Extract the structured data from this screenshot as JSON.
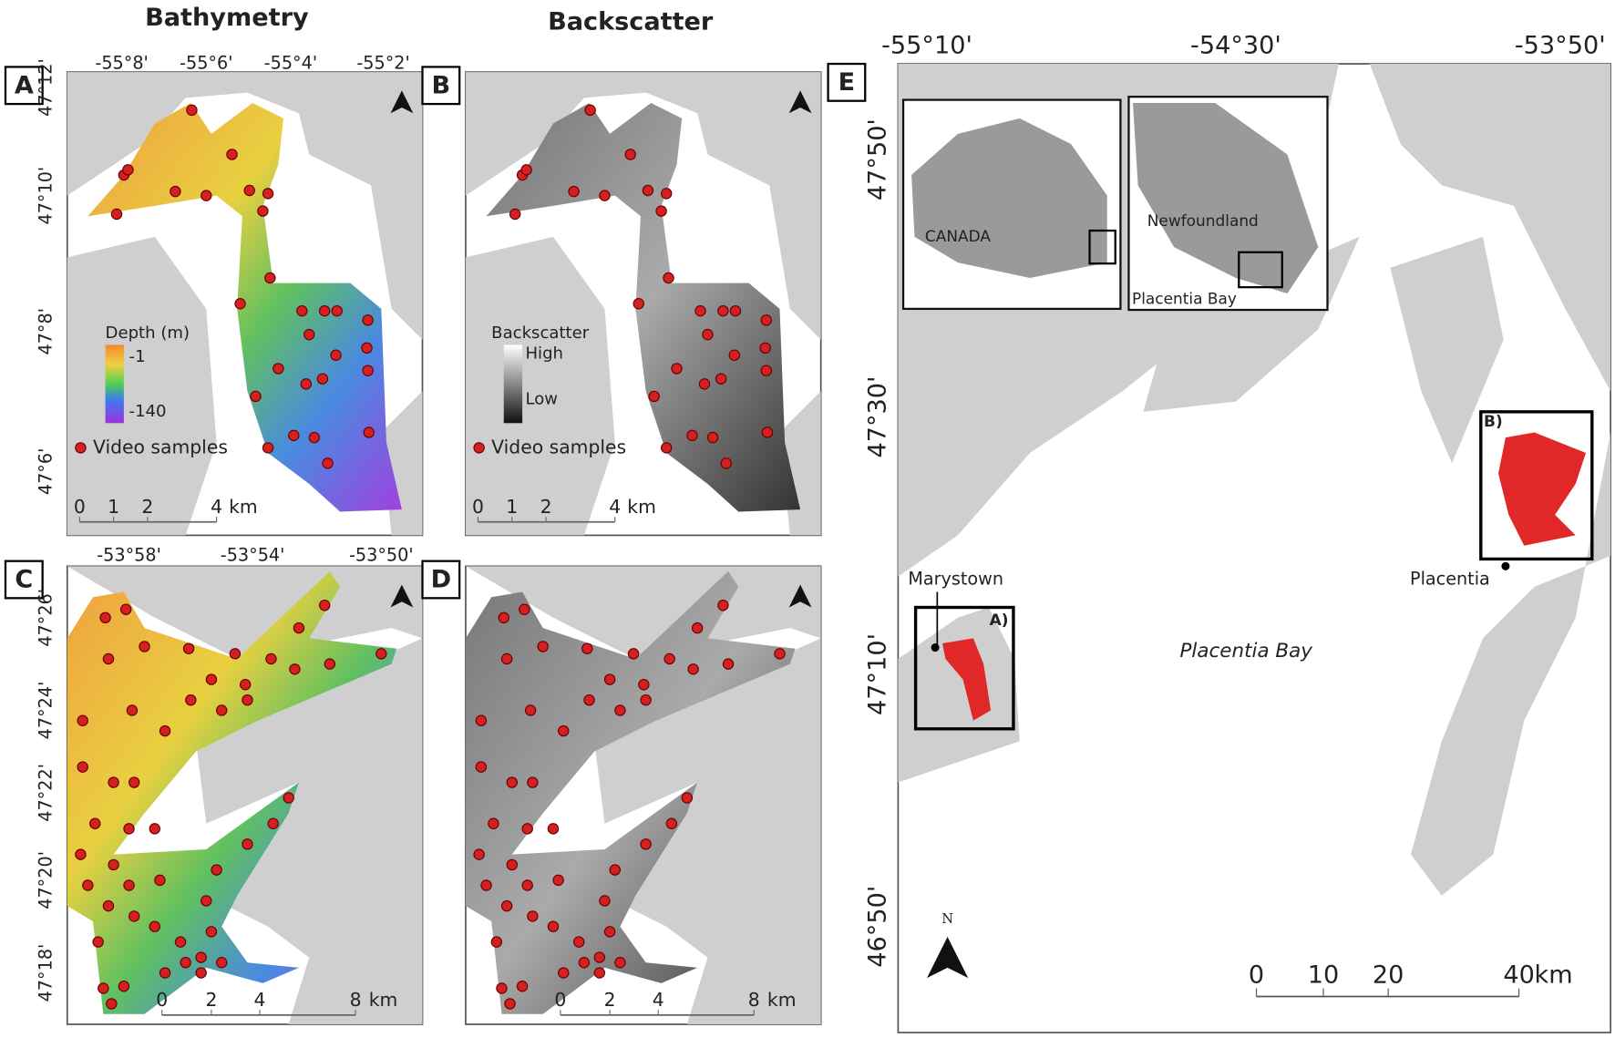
{
  "column_titles": [
    "Bathymetry",
    "Backscatter"
  ],
  "panel_a": {
    "label": "A",
    "lon_ticks": [
      "-55°8'",
      "-55°6'",
      "-55°4'",
      "-55°2'"
    ],
    "lat_ticks": [
      "47°12'",
      "47°10'",
      "47°8'",
      "47°6'"
    ],
    "legend_title": "Depth (m)",
    "legend_high": "-1",
    "legend_low": "-140",
    "samples": "Video samples",
    "scale": [
      "0",
      "1",
      "2",
      "4"
    ],
    "scale_unit": "km"
  },
  "panel_b": {
    "label": "B",
    "legend_title": "Backscatter",
    "legend_high": "High",
    "legend_low": "Low",
    "samples": "Video samples",
    "scale": [
      "0",
      "1",
      "2",
      "4"
    ],
    "scale_unit": "km"
  },
  "panel_c": {
    "label": "C",
    "lon_ticks": [
      "-53°58'",
      "-53°54'",
      "-53°50'"
    ],
    "lat_ticks": [
      "47°26'",
      "47°24'",
      "47°22'",
      "47°20'",
      "47°18'"
    ],
    "scale": [
      "0",
      "2",
      "4",
      "8"
    ],
    "scale_unit": "km"
  },
  "panel_d": {
    "label": "D",
    "scale": [
      "0",
      "2",
      "4",
      "8"
    ],
    "scale_unit": "km"
  },
  "panel_e": {
    "label": "E",
    "lon_ticks": [
      "-55°10'",
      "-54°30'",
      "-53°50'"
    ],
    "lat_ticks": [
      "47°50'",
      "47°30'",
      "47°10'",
      "46°50'"
    ],
    "inset_labels": [
      "CANADA",
      "Newfoundland",
      "Placentia Bay"
    ],
    "places": {
      "marystown": "Marystown",
      "placentia": "Placentia",
      "bay": "Placentia Bay"
    },
    "box_labels": [
      "A)",
      "B)"
    ],
    "north": "N",
    "scale": [
      "0",
      "10",
      "20",
      "40"
    ],
    "scale_unit": "km"
  }
}
